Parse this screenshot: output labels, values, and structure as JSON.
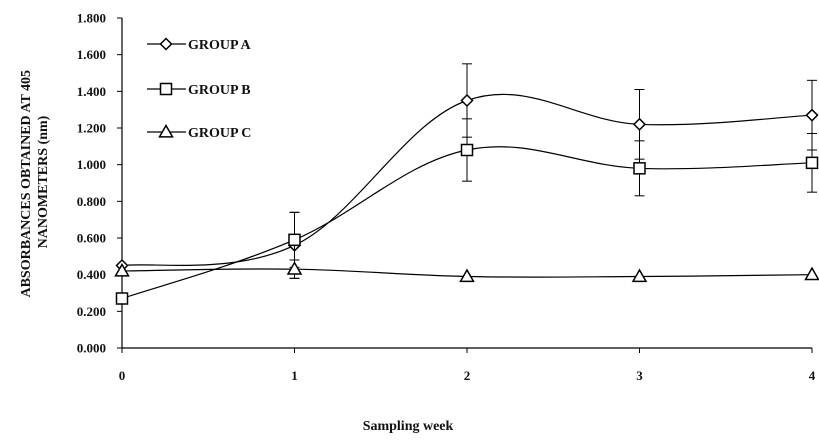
{
  "chart_data": {
    "type": "line",
    "title": "",
    "xlabel": "Sampling week",
    "ylabel_lines": [
      "ABSORBANCES OBTAINED AT 405",
      "NANOMETERS (nm)"
    ],
    "x": [
      0,
      1,
      2,
      3,
      4
    ],
    "xlim": [
      0,
      4
    ],
    "ylim": [
      0,
      1.8
    ],
    "yticks": [
      "0.000",
      "0.200",
      "0.400",
      "0.600",
      "0.800",
      "1.000",
      "1.200",
      "1.400",
      "1.600",
      "1.800"
    ],
    "xticks": [
      "0",
      "1",
      "2",
      "3",
      "4"
    ],
    "grid": false,
    "legend_position": "top-left",
    "series": [
      {
        "name": "GROUP A",
        "marker": "diamond",
        "values": [
          0.45,
          0.56,
          1.35,
          1.22,
          1.27
        ],
        "errors": [
          0,
          0.18,
          0.2,
          0.19,
          0.19
        ]
      },
      {
        "name": "GROUP B",
        "marker": "square",
        "values": [
          0.27,
          0.59,
          1.08,
          0.98,
          1.01
        ],
        "errors": [
          0,
          0.15,
          0.17,
          0.15,
          0.16
        ]
      },
      {
        "name": "GROUP C",
        "marker": "triangle",
        "values": [
          0.42,
          0.43,
          0.39,
          0.39,
          0.4
        ],
        "errors": [
          0,
          0.05,
          0,
          0,
          0
        ]
      }
    ],
    "line_color": "#000000"
  }
}
